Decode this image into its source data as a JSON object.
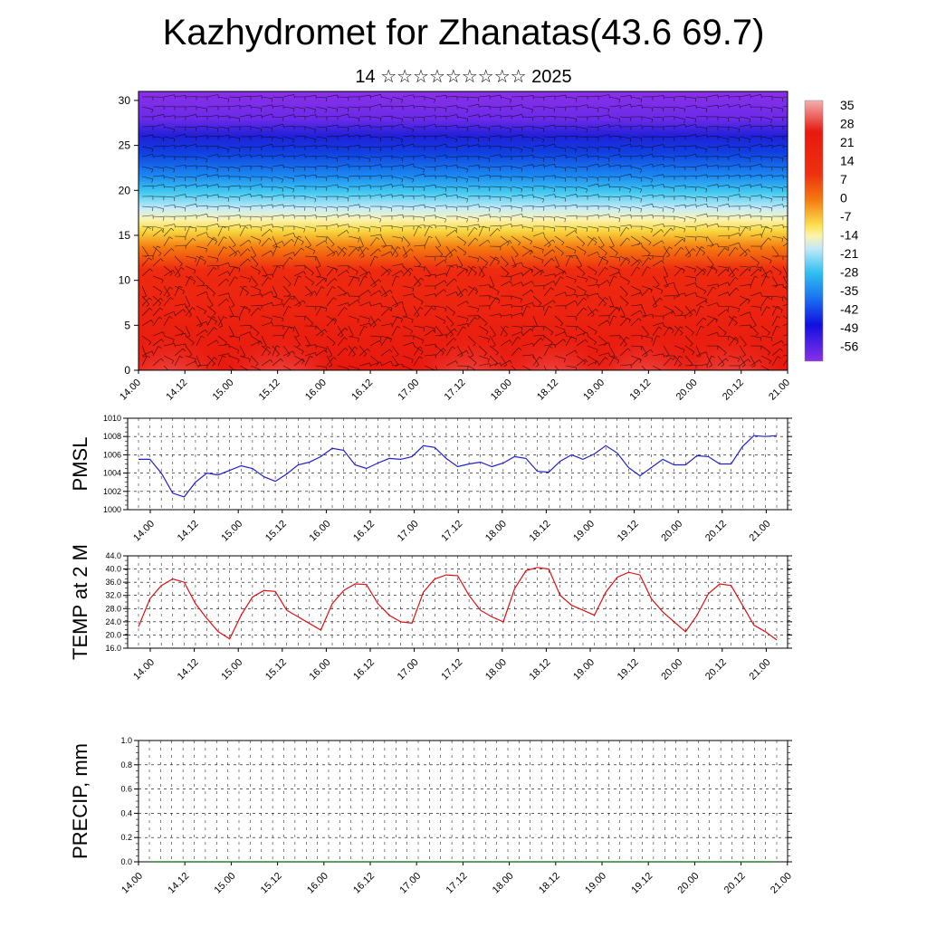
{
  "title": "Kazhydromet for Zhanatas(43.6 69.7)",
  "subtitle": "14 ☆☆☆☆☆☆☆☆☆ 2025",
  "chart_data": [
    {
      "type": "heatmap",
      "name": "temperature-wind-cross-section",
      "x_ticks": [
        "14.00",
        "14.12",
        "15.00",
        "15.12",
        "16.00",
        "16.12",
        "17.00",
        "17.12",
        "18.00",
        "18.12",
        "19.00",
        "19.12",
        "20.00",
        "20.12",
        "21.00"
      ],
      "y_ticks": [
        "0",
        "5",
        "10",
        "15",
        "20",
        "25",
        "30"
      ],
      "ylim": [
        0,
        31
      ],
      "colorbar_labels": [
        "35",
        "28",
        "21",
        "14",
        "7",
        "0",
        "-7",
        "-14",
        "-21",
        "-28",
        "-35",
        "-42",
        "-49",
        "-56"
      ],
      "colors": {
        "warmest": "#f2a0a0",
        "warm": "#e8190f",
        "orange": "#f47a10",
        "yellow": "#f8e040",
        "cyan": "#40c8f0",
        "blue": "#1040e0",
        "violet": "#8a30e8"
      }
    },
    {
      "type": "line",
      "name": "PMSL",
      "ylabel": "PMSL",
      "ylim": [
        1000,
        1010
      ],
      "y_ticks": [
        "1000",
        "1002",
        "1004",
        "1006",
        "1008",
        "1010"
      ],
      "x_ticks": [
        "14.00",
        "14.12",
        "15.00",
        "15.12",
        "16.00",
        "16.12",
        "17.00",
        "17.12",
        "18.00",
        "18.12",
        "19.00",
        "19.12",
        "20.00",
        "20.12",
        "21.00"
      ],
      "color": "#1f1fd0",
      "x": [
        0,
        1,
        2,
        3,
        4,
        5,
        6,
        7,
        8,
        9,
        10,
        11,
        12,
        13,
        14,
        15,
        16,
        17,
        18,
        19,
        20,
        21,
        22,
        23,
        24,
        25,
        26,
        27,
        28,
        29,
        30,
        31,
        32,
        33,
        34,
        35,
        36,
        37,
        38,
        39,
        40,
        41,
        42,
        43,
        44,
        45,
        46,
        47,
        48,
        49,
        50,
        51,
        52,
        53,
        54,
        55,
        56
      ],
      "values": [
        1005.5,
        1005.5,
        1004.0,
        1001.8,
        1001.4,
        1003.0,
        1004.0,
        1003.8,
        1004.3,
        1004.8,
        1004.5,
        1003.6,
        1003.1,
        1003.9,
        1004.9,
        1005.2,
        1005.8,
        1006.7,
        1006.5,
        1004.9,
        1004.5,
        1005.1,
        1005.6,
        1005.5,
        1005.8,
        1007.0,
        1006.8,
        1005.6,
        1004.7,
        1005.0,
        1005.2,
        1004.7,
        1005.1,
        1005.8,
        1005.6,
        1004.2,
        1004.1,
        1005.3,
        1006.0,
        1005.5,
        1006.1,
        1007.0,
        1006.2,
        1004.6,
        1003.7,
        1004.6,
        1005.5,
        1004.9,
        1004.9,
        1005.9,
        1005.8,
        1005.0,
        1005.0,
        1006.9,
        1008.1,
        1008.0,
        1008.1
      ]
    },
    {
      "type": "line",
      "name": "TEMP",
      "ylabel": "TEMP at 2 M",
      "ylim": [
        16,
        44
      ],
      "y_ticks": [
        "16.0",
        "20.0",
        "24.0",
        "28.0",
        "32.0",
        "36.0",
        "40.0",
        "44.0"
      ],
      "x_ticks": [
        "14.00",
        "14.12",
        "15.00",
        "15.12",
        "16.00",
        "16.12",
        "17.00",
        "17.12",
        "18.00",
        "18.12",
        "19.00",
        "19.12",
        "20.00",
        "20.12",
        "21.00"
      ],
      "color": "#e01010",
      "x": [
        0,
        1,
        2,
        3,
        4,
        5,
        6,
        7,
        8,
        9,
        10,
        11,
        12,
        13,
        14,
        15,
        16,
        17,
        18,
        19,
        20,
        21,
        22,
        23,
        24,
        25,
        26,
        27,
        28,
        29,
        30,
        31,
        32,
        33,
        34,
        35,
        36,
        37,
        38,
        39,
        40,
        41,
        42,
        43,
        44,
        45,
        46,
        47,
        48,
        49,
        50,
        51,
        52,
        53,
        54,
        55,
        56
      ],
      "values": [
        22.5,
        31.0,
        35.0,
        37.0,
        36.0,
        29.5,
        25.0,
        21.0,
        18.8,
        26.0,
        31.5,
        33.5,
        33.2,
        27.5,
        25.5,
        23.5,
        21.5,
        29.5,
        33.5,
        35.5,
        35.3,
        29.5,
        26.0,
        24.0,
        23.6,
        33.0,
        37.0,
        38.2,
        38.0,
        32.0,
        27.5,
        25.5,
        24.0,
        34.0,
        39.5,
        40.5,
        40.0,
        32.0,
        29.0,
        27.5,
        26.0,
        33.0,
        37.5,
        39.0,
        38.2,
        31.0,
        27.0,
        24.0,
        21.0,
        26.0,
        32.5,
        35.5,
        35.0,
        29.0,
        23.0,
        21.0,
        18.5
      ]
    },
    {
      "type": "line",
      "name": "PRECIP",
      "ylabel": "PRECIP, mm",
      "ylim": [
        0,
        1
      ],
      "y_ticks": [
        "0.0",
        "0.2",
        "0.4",
        "0.6",
        "0.8",
        "1.0"
      ],
      "x_ticks": [
        "14.00",
        "14.12",
        "15.00",
        "15.12",
        "16.00",
        "16.12",
        "17.00",
        "17.12",
        "18.00",
        "18.12",
        "19.00",
        "19.12",
        "20.00",
        "20.12",
        "21.00"
      ],
      "color": "#006400",
      "x": [
        0,
        56
      ],
      "values": [
        0,
        0
      ]
    }
  ]
}
